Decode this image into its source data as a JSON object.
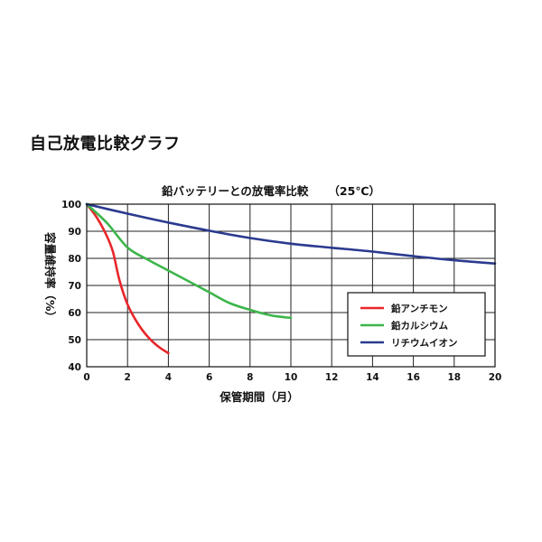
{
  "heading": "自己放電比較グラフ",
  "chart_data": {
    "type": "line",
    "title": "鉛バッテリーとの放電率比較",
    "condition": "（25℃）",
    "xlabel": "保管期間（月）",
    "ylabel": "容量維持率（%）",
    "xlim": [
      0,
      20
    ],
    "ylim": [
      40,
      100
    ],
    "x_ticks": [
      0,
      2,
      4,
      6,
      8,
      10,
      12,
      14,
      16,
      18,
      20
    ],
    "y_ticks": [
      40,
      50,
      60,
      70,
      80,
      90,
      100
    ],
    "x_tick_labels": [
      "0",
      "2",
      "4",
      "6",
      "8",
      "10",
      "12",
      "14",
      "16",
      "18",
      "20"
    ],
    "y_tick_labels": [
      "40",
      "50",
      "60",
      "70",
      "80",
      "90",
      "100"
    ],
    "grid": true,
    "legend_position": "bottom-right",
    "series": [
      {
        "name": "鉛アンチモン",
        "color": "#e8262a",
        "x": [
          0,
          0.5,
          1,
          1.3,
          1.6,
          2,
          2.5,
          3,
          3.5,
          4
        ],
        "y": [
          100,
          95,
          88,
          82,
          72,
          63,
          56,
          51,
          47.5,
          45
        ]
      },
      {
        "name": "鉛カルシウム",
        "color": "#3cb54a",
        "x": [
          0,
          1,
          2,
          3,
          4,
          5,
          6,
          7,
          8,
          9,
          10
        ],
        "y": [
          100,
          93,
          84,
          79.5,
          75.5,
          71.5,
          67.5,
          63.5,
          61,
          59,
          58
        ]
      },
      {
        "name": "リチウムイオン",
        "color": "#2b3a8f",
        "x": [
          0,
          2,
          4,
          6,
          8,
          10,
          12,
          14,
          16,
          18,
          20
        ],
        "y": [
          100,
          96.5,
          93.2,
          90.2,
          87.5,
          85.4,
          83.9,
          82.5,
          80.8,
          79.3,
          78.1
        ]
      }
    ]
  }
}
